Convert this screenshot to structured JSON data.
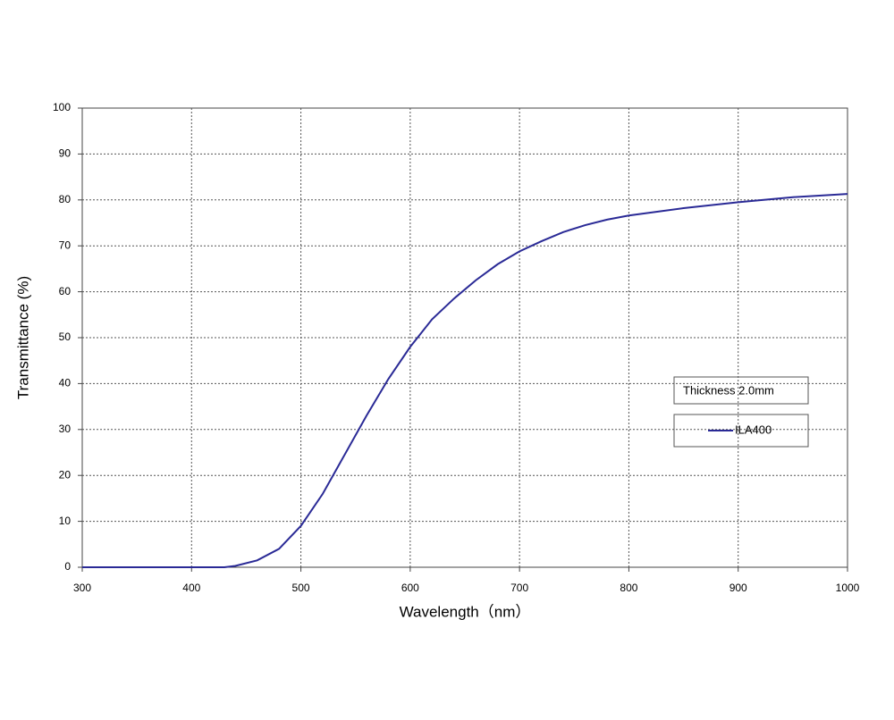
{
  "chart_data": {
    "type": "line",
    "xlabel": "Wavelength（nm）",
    "ylabel": "Transmittance (%)",
    "annotation": "Thickness  2.0mm",
    "x": [
      300,
      400,
      430,
      440,
      460,
      480,
      500,
      520,
      540,
      560,
      580,
      600,
      620,
      640,
      660,
      680,
      700,
      720,
      740,
      760,
      780,
      800,
      850,
      900,
      950,
      1000
    ],
    "series": [
      {
        "name": "ILA400",
        "color": "#2a2a96",
        "values": [
          0,
          0,
          0,
          0.3,
          1.5,
          4,
          9,
          16,
          24.5,
          33,
          41,
          48,
          54,
          58.5,
          62.5,
          66,
          68.8,
          71,
          73,
          74.5,
          75.7,
          76.6,
          78.2,
          79.5,
          80.6,
          81.3
        ]
      }
    ],
    "xlim": [
      300,
      1000
    ],
    "xticks": [
      300,
      400,
      500,
      600,
      700,
      800,
      900,
      1000
    ],
    "ylim": [
      0,
      100
    ],
    "yticks": [
      0,
      10,
      20,
      30,
      40,
      50,
      60,
      70,
      80,
      90,
      100
    ],
    "grid": true
  }
}
